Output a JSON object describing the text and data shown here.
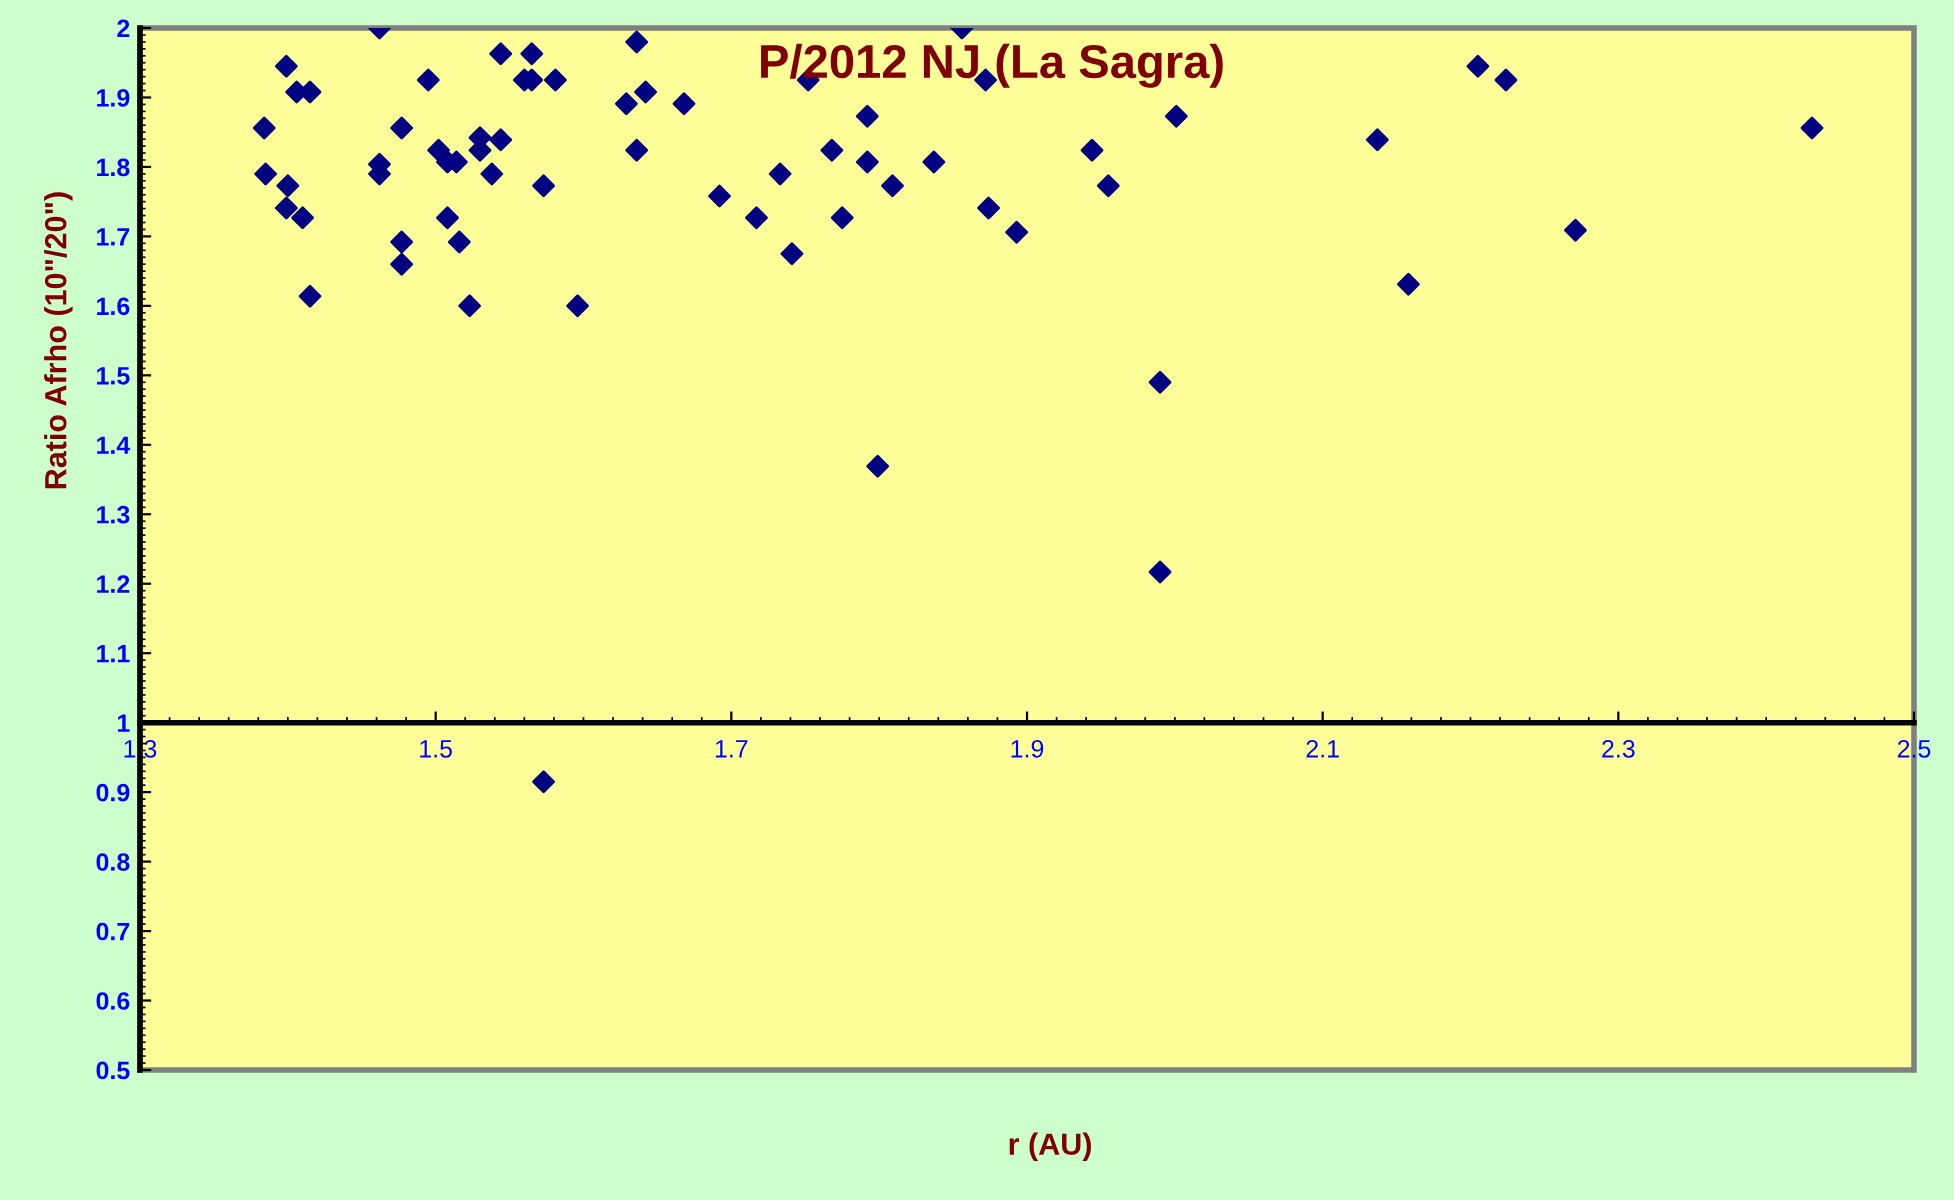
{
  "chart_data": {
    "type": "scatter",
    "title": "P/2012 NJ (La Sagra)",
    "xlabel": "r (AU)",
    "ylabel": "Ratio Afrho (10\"/20\")",
    "xlim": [
      1.3,
      2.5
    ],
    "xticks": [
      1.3,
      1.5,
      1.7,
      1.9,
      2.1,
      2.3,
      2.5
    ],
    "ylim": [
      0.5,
      2
    ],
    "yticks": [
      0.5,
      0.6,
      0.7,
      0.8,
      0.9,
      1,
      1.1,
      1.2,
      1.3,
      1.4,
      1.5,
      1.6,
      1.7,
      1.8,
      1.9,
      2
    ],
    "marker": "diamond",
    "series": [
      {
        "color": "#000080",
        "x": [
          1.384,
          1.385,
          1.399,
          1.399,
          1.4,
          1.406,
          1.41,
          1.415,
          1.415,
          1.462,
          1.462,
          1.462,
          1.477,
          1.477,
          1.477,
          1.495,
          1.502,
          1.508,
          1.508,
          1.514,
          1.516,
          1.523,
          1.53,
          1.53,
          1.538,
          1.544,
          1.544,
          1.56,
          1.565,
          1.565,
          1.573,
          1.581,
          1.596,
          1.629,
          1.636,
          1.636,
          1.642,
          1.668,
          1.692,
          1.717,
          1.733,
          1.741,
          1.752,
          1.768,
          1.775,
          1.792,
          1.792,
          1.799,
          1.809,
          1.837,
          1.856,
          1.872,
          1.874,
          1.893,
          1.944,
          1.955,
          1.99,
          1.99,
          2.001,
          2.137,
          2.158,
          2.205,
          2.224,
          2.271,
          2.431,
          1.573
        ],
        "values": [
          1.856,
          1.79,
          1.945,
          1.741,
          1.773,
          1.908,
          1.727,
          1.908,
          1.614,
          2.0,
          1.804,
          1.79,
          1.856,
          1.692,
          1.66,
          1.925,
          1.824,
          1.807,
          1.727,
          1.807,
          1.692,
          1.6,
          1.842,
          1.824,
          1.79,
          1.963,
          1.839,
          1.925,
          1.963,
          1.925,
          1.773,
          1.925,
          1.6,
          1.891,
          1.98,
          1.824,
          1.908,
          1.891,
          1.758,
          1.727,
          1.79,
          1.675,
          1.925,
          1.824,
          1.727,
          1.873,
          1.807,
          1.369,
          1.773,
          1.807,
          2.0,
          1.925,
          1.741,
          1.706,
          1.824,
          1.773,
          1.49,
          1.217,
          1.873,
          1.839,
          1.631,
          1.945,
          1.925,
          1.709,
          1.856,
          0.915
        ]
      }
    ]
  }
}
